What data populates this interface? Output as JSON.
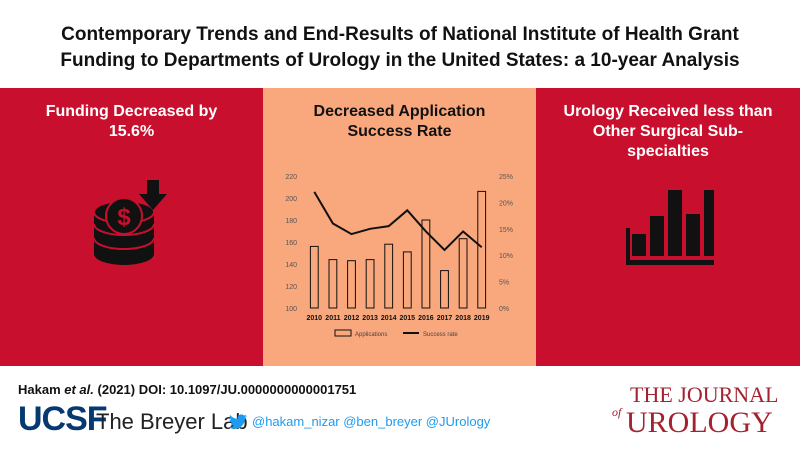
{
  "title": {
    "line1": "Contemporary Trends and End-Results of National Institute of Health Grant",
    "line2": "Funding to Departments of Urology in the United States: a 10-year Analysis"
  },
  "panels": {
    "left": {
      "line1": "Funding Decreased by",
      "line2": "15.6%",
      "icon": "money-stack-down-icon"
    },
    "middle": {
      "line1": "Decreased Application",
      "line2": "Success Rate"
    },
    "right": {
      "line1": "Urology Received less than",
      "line2": "Other Surgical Sub-",
      "line3": "specialties",
      "icon": "bar-chart-icon"
    }
  },
  "chart_data": {
    "type": "bar",
    "categories": [
      "2010",
      "2011",
      "2012",
      "2013",
      "2014",
      "2015",
      "2016",
      "2017",
      "2018",
      "2019"
    ],
    "series": [
      {
        "name": "Applications",
        "type": "bar",
        "axis": "left",
        "values": [
          156,
          144,
          143,
          144,
          158,
          151,
          180,
          134,
          163,
          206
        ]
      },
      {
        "name": "Success rate",
        "type": "line",
        "axis": "right",
        "values": [
          22,
          16,
          14,
          15,
          15.5,
          18.5,
          14.5,
          11,
          14.5,
          11.5
        ]
      }
    ],
    "y_left": {
      "ylim": [
        100,
        220
      ],
      "ticks": [
        "100",
        "120",
        "140",
        "160",
        "180",
        "200",
        "220"
      ]
    },
    "y_right": {
      "ylim": [
        0,
        25
      ],
      "ticks": [
        "0%",
        "5%",
        "10%",
        "15%",
        "20%",
        "25%"
      ]
    },
    "legend": [
      "Applications",
      "Success rate"
    ],
    "legend_position": "bottom"
  },
  "footer": {
    "citation_author": "Hakam",
    "citation_etal": "et al.",
    "citation_rest": "(2021) DOI: 10.1097/JU.0000000000001751",
    "ucsf": "UCSF",
    "lab": "The Breyer Lab",
    "handles": "@hakam_nizar @ben_breyer @JUrology",
    "journal_the": "THE JOURNAL",
    "journal_of": "of",
    "journal_name": "UROLOGY"
  },
  "colors": {
    "red": "#c8102e",
    "peach": "#f9a77c",
    "navy": "#063971",
    "journal_red": "#a3222f",
    "twitter": "#1d9bf0"
  }
}
